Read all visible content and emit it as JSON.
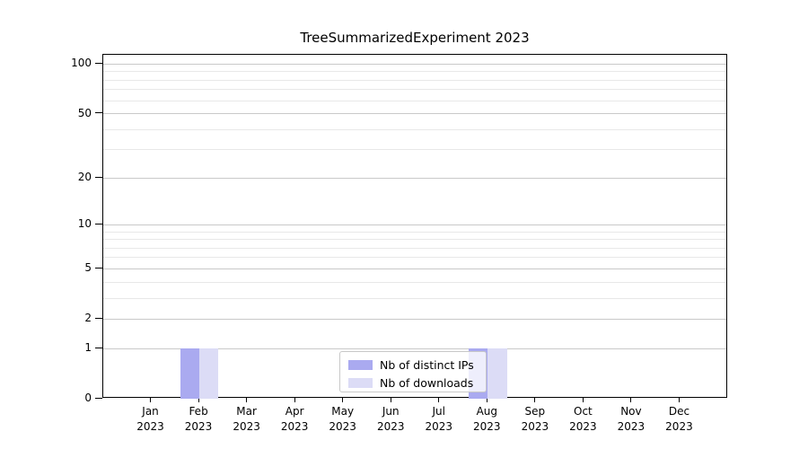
{
  "title": "TreeSummarizedExperiment 2023",
  "chart_data": {
    "type": "bar",
    "title": "TreeSummarizedExperiment 2023",
    "categories": [
      "Jan 2023",
      "Feb 2023",
      "Mar 2023",
      "Apr 2023",
      "May 2023",
      "Jun 2023",
      "Jul 2023",
      "Aug 2023",
      "Sep 2023",
      "Oct 2023",
      "Nov 2023",
      "Dec 2023"
    ],
    "series": [
      {
        "name": "Nb of distinct IPs",
        "color": "#aaaaf0",
        "values": [
          0,
          1,
          0,
          0,
          0,
          0,
          0,
          1,
          0,
          0,
          0,
          0
        ]
      },
      {
        "name": "Nb of downloads",
        "color": "#dcdcf6",
        "values": [
          0,
          1,
          0,
          0,
          0,
          0,
          0,
          1,
          0,
          0,
          0,
          0
        ]
      }
    ],
    "xlabel": "",
    "ylabel": "",
    "yscale": "log1p",
    "ylim": [
      0,
      114
    ],
    "y_ticks": [
      0,
      1,
      2,
      5,
      10,
      20,
      50,
      100
    ],
    "y_minor_gridlines": [
      3,
      4,
      6,
      7,
      8,
      9,
      30,
      40,
      60,
      70,
      80,
      90
    ],
    "grid": "horizontal",
    "legend_position": "lower center"
  }
}
